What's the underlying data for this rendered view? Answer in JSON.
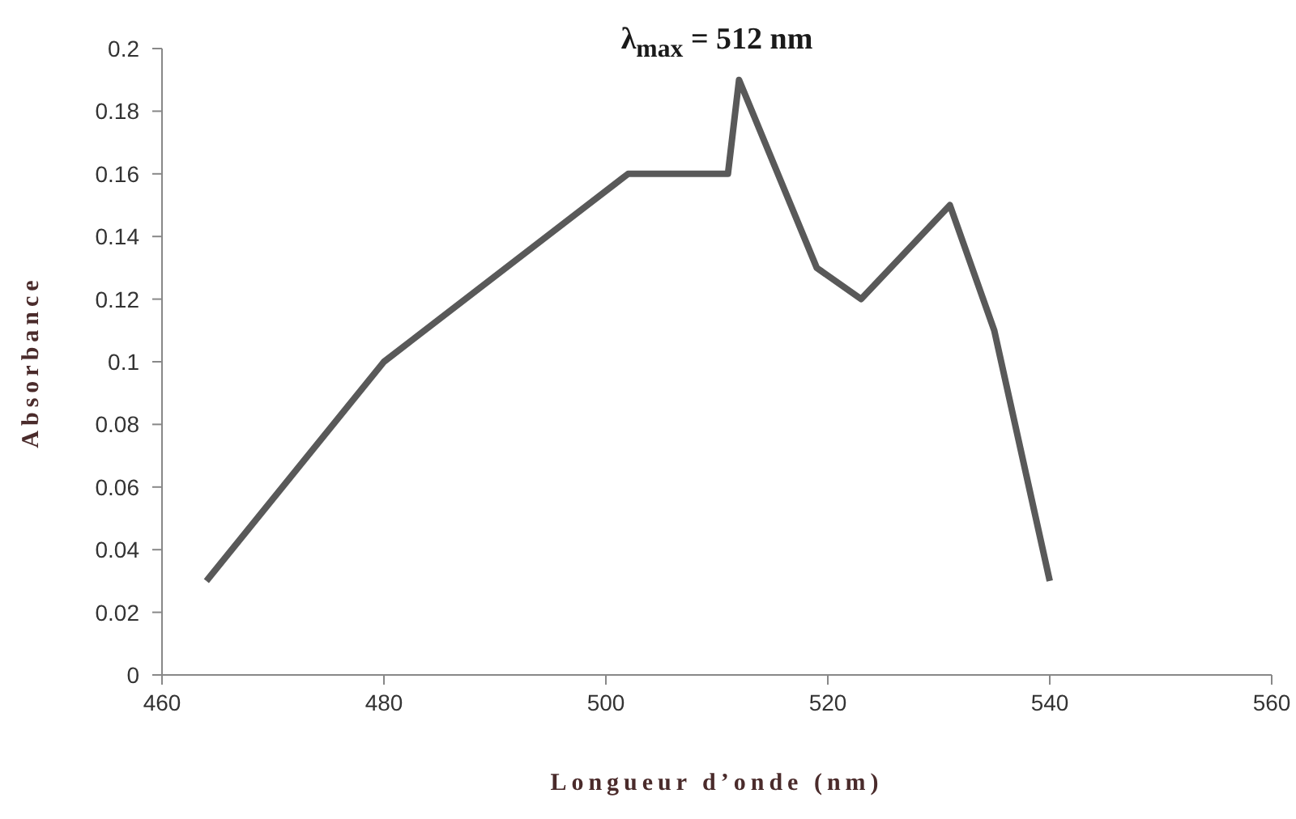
{
  "chart_data": {
    "type": "line",
    "title": "λ$_{max}$ = 512 nm",
    "xlabel": "Longueur d’onde (nm)",
    "ylabel": "Absorbance",
    "x": [
      464,
      480,
      502,
      511,
      512,
      519,
      523,
      531,
      535,
      540
    ],
    "series": [
      {
        "color": "#595959",
        "values": [
          0.03,
          0.1,
          0.16,
          0.16,
          0.19,
          0.13,
          0.12,
          0.15,
          0.11,
          0.03
        ]
      }
    ],
    "xlim": [
      460,
      560
    ],
    "xticks": [
      460,
      480,
      500,
      520,
      540,
      560
    ],
    "ylim": [
      0,
      0.2
    ],
    "yticks": [
      0,
      0.02,
      0.04,
      0.06,
      0.08,
      0.1,
      0.12,
      0.14,
      0.16,
      0.18,
      0.2
    ],
    "grid": false,
    "legend": false,
    "marker": "none",
    "line_style": "solid"
  }
}
